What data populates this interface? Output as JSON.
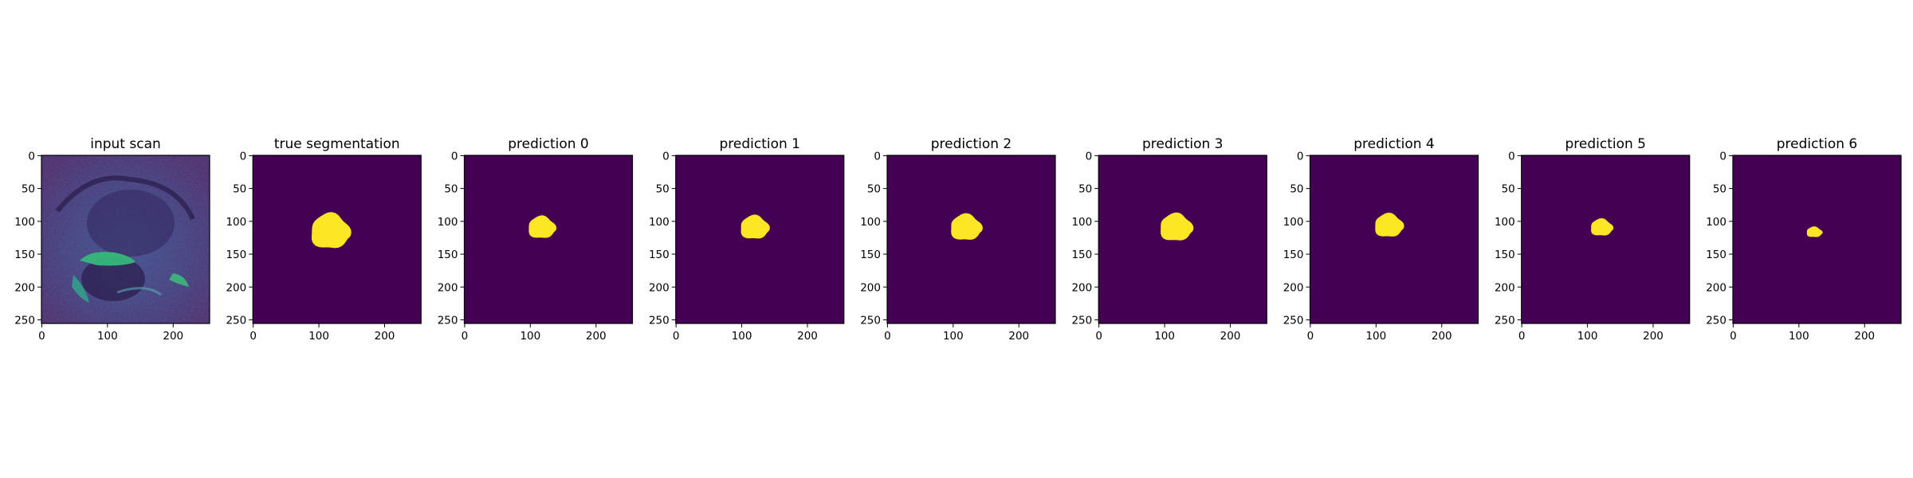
{
  "figure": {
    "panels": [
      {
        "title": "input scan",
        "kind": "scan"
      },
      {
        "title": "true segmentation",
        "kind": "mask",
        "mask": {
          "cx": 118,
          "cy": 116,
          "rx": 30,
          "ry": 27,
          "tilt": 0.08
        }
      },
      {
        "title": "prediction 0",
        "kind": "mask",
        "mask": {
          "cx": 118,
          "cy": 110,
          "rx": 21,
          "ry": 17,
          "tilt": 0.05
        }
      },
      {
        "title": "prediction 1",
        "kind": "mask",
        "mask": {
          "cx": 120,
          "cy": 110,
          "rx": 22,
          "ry": 18,
          "tilt": 0.05
        }
      },
      {
        "title": "prediction 2",
        "kind": "mask",
        "mask": {
          "cx": 120,
          "cy": 110,
          "rx": 24,
          "ry": 20,
          "tilt": 0.05
        }
      },
      {
        "title": "prediction 3",
        "kind": "mask",
        "mask": {
          "cx": 118,
          "cy": 110,
          "rx": 25,
          "ry": 21,
          "tilt": 0.05
        }
      },
      {
        "title": "prediction 4",
        "kind": "mask",
        "mask": {
          "cx": 120,
          "cy": 107,
          "rx": 22,
          "ry": 18,
          "tilt": 0.05
        }
      },
      {
        "title": "prediction 5",
        "kind": "mask",
        "mask": {
          "cx": 122,
          "cy": 110,
          "rx": 17,
          "ry": 13,
          "tilt": 0.05
        }
      },
      {
        "title": "prediction 6",
        "kind": "mask",
        "mask": {
          "cx": 124,
          "cy": 117,
          "rx": 12,
          "ry": 8,
          "tilt": 0.05
        }
      }
    ],
    "xticks": [
      "0",
      "100",
      "200"
    ],
    "yticks": [
      "0",
      "50",
      "100",
      "150",
      "200",
      "250"
    ],
    "image_size": 256,
    "colors": {
      "background": "#440154",
      "foreground": "#fde725",
      "scan_dark": "#3b2a5e",
      "scan_mid": "#3a5a8c",
      "scan_bright": "#35b779"
    }
  }
}
